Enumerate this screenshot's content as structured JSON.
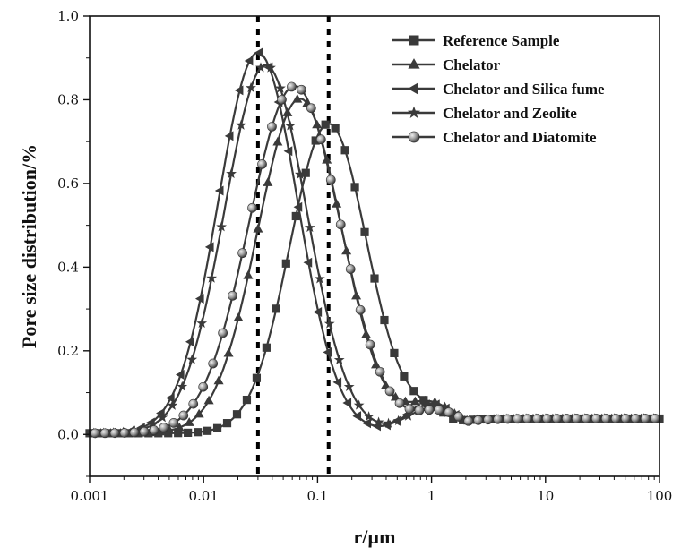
{
  "chart_data": {
    "type": "line",
    "xlabel": "r/µm",
    "ylabel": "Pore size distribution/%",
    "xscale": "log",
    "xlim": [
      0.001,
      100
    ],
    "ylim": [
      -0.1,
      1.0
    ],
    "xticks": [
      {
        "value": 0.001,
        "label": "0.001"
      },
      {
        "value": 0.01,
        "label": "0.01"
      },
      {
        "value": 0.1,
        "label": "0.1"
      },
      {
        "value": 1,
        "label": "1"
      },
      {
        "value": 10,
        "label": "10"
      },
      {
        "value": 100,
        "label": "100"
      }
    ],
    "yticks": [
      {
        "value": 0.0,
        "label": "0.0"
      },
      {
        "value": 0.2,
        "label": "0.2"
      },
      {
        "value": 0.4,
        "label": "0.4"
      },
      {
        "value": 0.6,
        "label": "0.6"
      },
      {
        "value": 0.8,
        "label": "0.8"
      },
      {
        "value": 1.0,
        "label": "1.0"
      }
    ],
    "reference_lines_x": [
      0.03,
      0.125
    ],
    "grid": false,
    "legend_position": "top-right",
    "series": [
      {
        "name": "Reference Sample",
        "marker": "square",
        "color": "#3a3a3a",
        "peak": 0.125,
        "height": 0.74,
        "width": 0.34,
        "bump_center": 1.0,
        "bump_height": 0.045,
        "tail": 0.035
      },
      {
        "name": "Chelator",
        "marker": "triangle-up",
        "color": "#3a3a3a",
        "peak": 0.07,
        "height": 0.8,
        "width": 0.37,
        "bump_center": 1.0,
        "bump_height": 0.07,
        "tail": 0.035
      },
      {
        "name": "Chelator and Silica fume",
        "marker": "triangle-left",
        "color": "#3a3a3a",
        "peak": 0.03,
        "height": 0.91,
        "width": 0.35,
        "bump_center": 1.0,
        "bump_height": 0.07,
        "tail": 0.035
      },
      {
        "name": "Chelator and Zeolite",
        "marker": "star",
        "color": "#3a3a3a",
        "peak": 0.035,
        "height": 0.88,
        "width": 0.36,
        "bump_center": 1.0,
        "bump_height": 0.06,
        "tail": 0.035
      },
      {
        "name": "Chelator and Diatomite",
        "marker": "sphere",
        "color": "#3a3a3a",
        "peak": 0.063,
        "height": 0.83,
        "width": 0.4,
        "bump_center": 1.2,
        "bump_height": 0.05,
        "tail": 0.035
      }
    ]
  }
}
